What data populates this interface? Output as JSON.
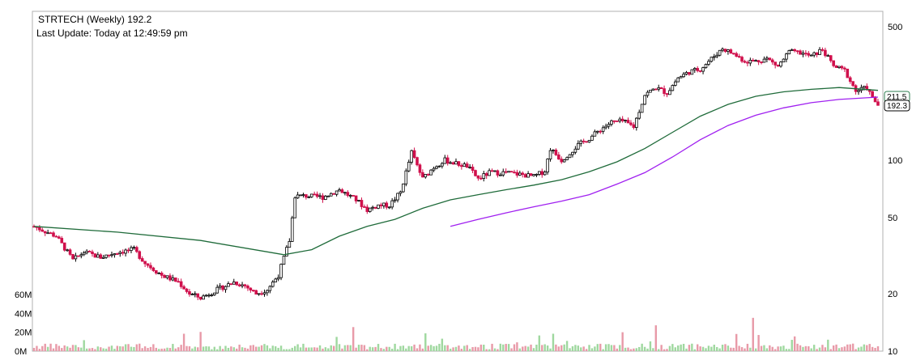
{
  "header": {
    "title": "STRTECH (Weekly) 192.2",
    "last_update": "Last Update: Today at 12:49:59 pm"
  },
  "chart_data": {
    "type": "candlestick",
    "symbol": "STRTECH",
    "timeframe": "Weekly",
    "price_scale": "log",
    "ylim": [
      10,
      600
    ],
    "y_ticks": [
      {
        "value": 500,
        "label": "500"
      },
      {
        "value": 100,
        "label": "100"
      },
      {
        "value": 50,
        "label": "50"
      },
      {
        "value": 20,
        "label": "20"
      },
      {
        "value": 10,
        "label": "10"
      }
    ],
    "volume_ticks": [
      {
        "value": 60,
        "label": "60M"
      },
      {
        "value": 40,
        "label": "40M"
      },
      {
        "value": 20,
        "label": "20M"
      },
      {
        "value": 0,
        "label": "0M"
      }
    ],
    "last_price_badges": [
      {
        "value": 211.5,
        "label": "211.5",
        "color": "#2e7d4f"
      },
      {
        "value": 192.3,
        "label": "192.3",
        "color": "#000000"
      }
    ],
    "price_keypoints": [
      [
        0,
        45
      ],
      [
        8,
        40
      ],
      [
        14,
        30
      ],
      [
        18,
        33
      ],
      [
        24,
        31
      ],
      [
        30,
        33
      ],
      [
        36,
        34
      ],
      [
        40,
        29
      ],
      [
        46,
        25
      ],
      [
        52,
        23
      ],
      [
        56,
        20
      ],
      [
        60,
        19
      ],
      [
        66,
        21
      ],
      [
        72,
        23
      ],
      [
        76,
        22
      ],
      [
        80,
        20
      ],
      [
        84,
        21
      ],
      [
        88,
        25
      ],
      [
        92,
        38
      ],
      [
        94,
        65
      ],
      [
        98,
        65
      ],
      [
        104,
        64
      ],
      [
        110,
        70
      ],
      [
        116,
        62
      ],
      [
        120,
        55
      ],
      [
        124,
        58
      ],
      [
        128,
        58
      ],
      [
        132,
        68
      ],
      [
        136,
        110
      ],
      [
        140,
        80
      ],
      [
        144,
        92
      ],
      [
        148,
        100
      ],
      [
        152,
        96
      ],
      [
        156,
        93
      ],
      [
        160,
        80
      ],
      [
        164,
        86
      ],
      [
        170,
        86
      ],
      [
        176,
        84
      ],
      [
        180,
        82
      ],
      [
        184,
        88
      ],
      [
        186,
        115
      ],
      [
        190,
        100
      ],
      [
        196,
        120
      ],
      [
        200,
        130
      ],
      [
        204,
        145
      ],
      [
        208,
        158
      ],
      [
        212,
        160
      ],
      [
        216,
        150
      ],
      [
        220,
        220
      ],
      [
        224,
        240
      ],
      [
        228,
        225
      ],
      [
        232,
        270
      ],
      [
        236,
        290
      ],
      [
        240,
        300
      ],
      [
        244,
        340
      ],
      [
        248,
        385
      ],
      [
        252,
        360
      ],
      [
        256,
        330
      ],
      [
        260,
        330
      ],
      [
        264,
        340
      ],
      [
        268,
        310
      ],
      [
        272,
        370
      ],
      [
        276,
        365
      ],
      [
        280,
        350
      ],
      [
        284,
        380
      ],
      [
        288,
        310
      ],
      [
        292,
        295
      ],
      [
        296,
        230
      ],
      [
        300,
        240
      ],
      [
        302,
        211
      ],
      [
        304,
        195
      ]
    ],
    "moving_averages": [
      {
        "color": "#1f6b3a",
        "points": [
          [
            0,
            45
          ],
          [
            30,
            42
          ],
          [
            60,
            38
          ],
          [
            90,
            32
          ],
          [
            100,
            34
          ],
          [
            110,
            40
          ],
          [
            120,
            45
          ],
          [
            130,
            49
          ],
          [
            140,
            56
          ],
          [
            150,
            62
          ],
          [
            160,
            66
          ],
          [
            170,
            70
          ],
          [
            180,
            74
          ],
          [
            190,
            79
          ],
          [
            200,
            87
          ],
          [
            210,
            98
          ],
          [
            220,
            115
          ],
          [
            230,
            140
          ],
          [
            240,
            170
          ],
          [
            250,
            196
          ],
          [
            260,
            216
          ],
          [
            270,
            228
          ],
          [
            280,
            235
          ],
          [
            290,
            240
          ],
          [
            304,
            232
          ]
        ]
      },
      {
        "color": "#a020f0",
        "points": [
          [
            150,
            45
          ],
          [
            160,
            49
          ],
          [
            170,
            53
          ],
          [
            180,
            57
          ],
          [
            190,
            61
          ],
          [
            200,
            66
          ],
          [
            210,
            75
          ],
          [
            220,
            86
          ],
          [
            230,
            104
          ],
          [
            240,
            128
          ],
          [
            250,
            152
          ],
          [
            260,
            172
          ],
          [
            270,
            188
          ],
          [
            280,
            200
          ],
          [
            290,
            208
          ],
          [
            304,
            214
          ]
        ]
      }
    ]
  }
}
